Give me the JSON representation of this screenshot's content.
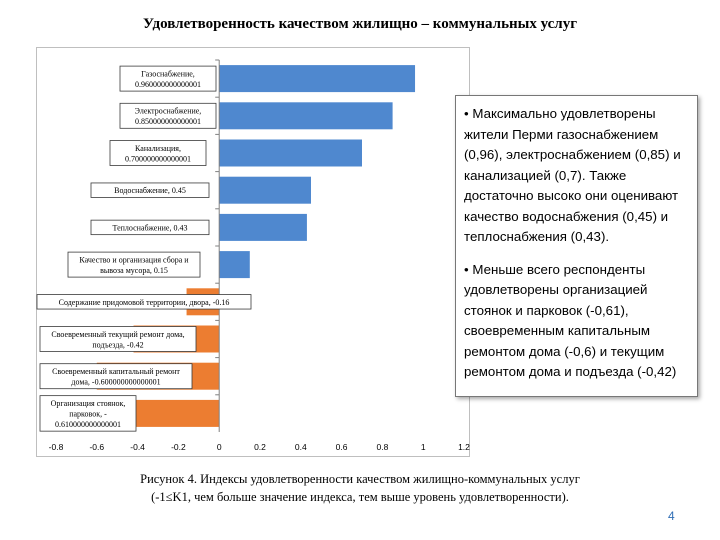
{
  "title": "Удовлетворенность качеством жилищно – коммунальных  услуг",
  "chart_data": {
    "type": "bar",
    "orientation": "horizontal",
    "categories": [
      "Газоснабжение",
      "Электроснабжение",
      "Канализация",
      "Водоснабжение",
      "Теплоснабжение",
      "Качество и организация сбора и вывоза мусора",
      "Содержание придомовой территории, двора",
      "Своевременный текущий ремонт дома, подъезда",
      "Своевременный капитальный ремонт дома",
      "Организация стоянок, парковок"
    ],
    "values": [
      0.96,
      0.85,
      0.7,
      0.45,
      0.43,
      0.15,
      -0.16,
      -0.42,
      -0.6,
      -0.61
    ],
    "data_labels": [
      [
        "Газоснабжение,",
        "0.960000000000001"
      ],
      [
        "Электроснабжение,",
        "0.850000000000001"
      ],
      [
        "Канализация,",
        "0.700000000000001"
      ],
      [
        "Водоснабжение, 0.45"
      ],
      [
        "Теплоснабжение, 0.43"
      ],
      [
        "Качество и организация сбора и",
        "вывоза мусора, 0.15"
      ],
      [
        "Содержание придомовой территории, двора, -0.16"
      ],
      [
        "Своевременный текущий ремонт дома,",
        "подъезда, -0.42"
      ],
      [
        "Своевременный капитальный ремонт",
        "дома, -0.600000000000001"
      ],
      [
        "Организация стоянок,",
        "парковок, -",
        "0.610000000000001"
      ]
    ],
    "xlim": [
      -0.8,
      1.2
    ],
    "xticks": [
      "-0.8",
      "-0.6",
      "-0.4",
      "-0.2",
      "0",
      "0.2",
      "0.4",
      "0.6",
      "0.8",
      "1",
      "1.2"
    ],
    "xlabel": "",
    "ylabel": "",
    "grid": false,
    "legend": "none",
    "colors": {
      "positive": "#4f88cf",
      "negative": "#ec7d31"
    }
  },
  "callout": {
    "paragraph1": "• Максимально удовлетворены жители Перми газоснабжением (0,96), электроснабжением (0,85) и канализацией (0,7). Также достаточно высоко они оценивают качество водоснабжения (0,45) и теплоснабжения (0,43).",
    "paragraph2": "• Меньше всего респонденты удовлетворены организацией стоянок и парковок (-0,61), своевременным капитальным ремонтом дома (-0,6) и текущим ремонтом дома и подъезда (-0,42)"
  },
  "caption": {
    "line1": "Рисунок 4. Индексы удовлетворенности качеством жилищно-коммунальных услуг",
    "line2": "(-1≤K1, чем больше значение индекса, тем выше уровень удовлетворенности)."
  },
  "page_number": "4"
}
